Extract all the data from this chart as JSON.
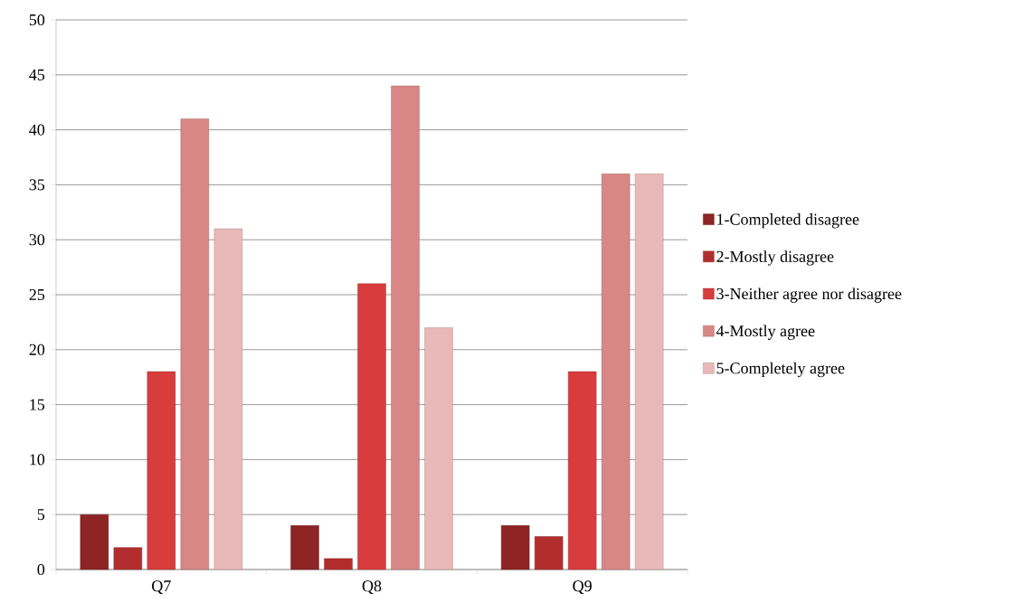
{
  "chart_data": {
    "type": "bar",
    "categories": [
      "Q7",
      "Q8",
      "Q9"
    ],
    "series": [
      {
        "name": "1-Completed disagree",
        "color": "#8e2424",
        "values": [
          5,
          4,
          4
        ]
      },
      {
        "name": "2-Mostly disagree",
        "color": "#b22e2e",
        "values": [
          2,
          1,
          3
        ]
      },
      {
        "name": "3-Neither agree nor disagree",
        "color": "#d83c3c",
        "values": [
          18,
          26,
          18
        ]
      },
      {
        "name": "4-Mostly agree",
        "color": "#d98686",
        "values": [
          41,
          44,
          36
        ]
      },
      {
        "name": "5-Completely agree",
        "color": "#e9b8b8",
        "values": [
          31,
          22,
          36
        ]
      }
    ],
    "ylim": [
      0,
      50
    ],
    "yticks": [
      0,
      5,
      10,
      15,
      20,
      25,
      30,
      35,
      40,
      45,
      50
    ],
    "grid": "y",
    "legend": "right"
  }
}
